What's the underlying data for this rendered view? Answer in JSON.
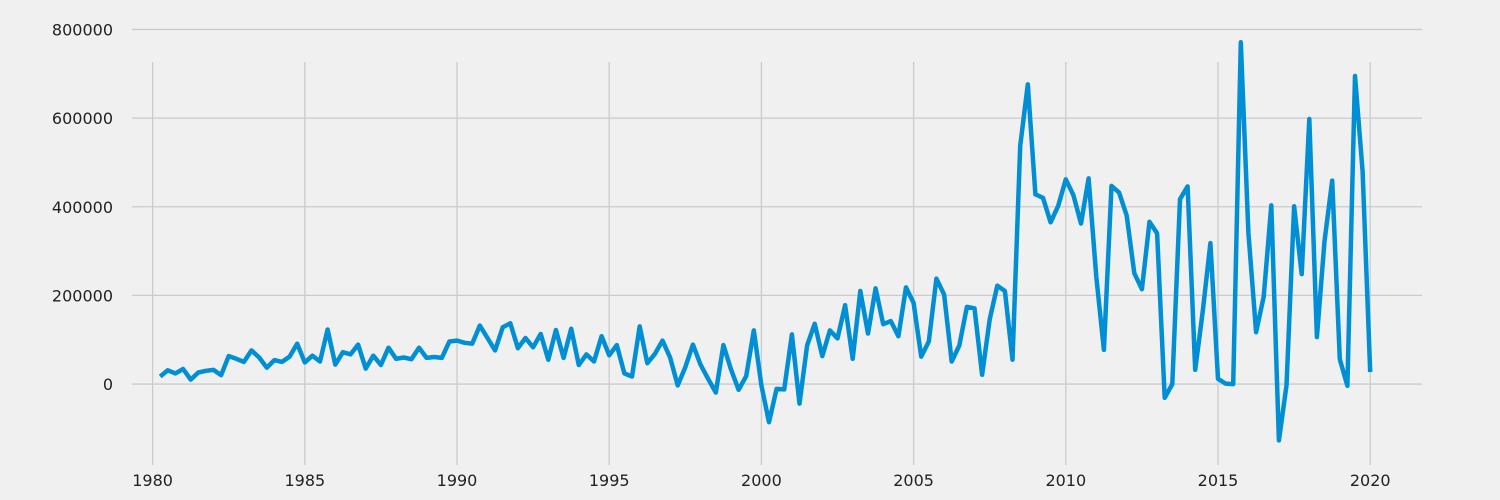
{
  "chart_data": {
    "type": "line",
    "title": "",
    "xlabel": "",
    "ylabel": "",
    "xlim": [
      1978.6,
      2021.8
    ],
    "ylim": [
      -160000,
      810000
    ],
    "grid": true,
    "x_ticks": [
      1980,
      1985,
      1990,
      1995,
      2000,
      2005,
      2010,
      2015,
      2020
    ],
    "y_ticks": [
      0,
      200000,
      400000,
      600000,
      800000
    ],
    "x_tick_labels": [
      "1980",
      "1985",
      "1990",
      "1995",
      "2000",
      "2005",
      "2010",
      "2015",
      "2020"
    ],
    "y_tick_labels": [
      "0",
      "200000",
      "400000",
      "600000",
      "800000"
    ],
    "series": [
      {
        "color": "#008fd5",
        "x": [
          1980.25,
          1980.5,
          1980.75,
          1981.0,
          1981.25,
          1981.5,
          1981.75,
          1982.0,
          1982.25,
          1982.5,
          1982.75,
          1983.0,
          1983.25,
          1983.5,
          1983.75,
          1984.0,
          1984.25,
          1984.5,
          1984.75,
          1985.0,
          1985.25,
          1985.5,
          1985.75,
          1986.0,
          1986.25,
          1986.5,
          1986.75,
          1987.0,
          1987.25,
          1987.5,
          1987.75,
          1988.0,
          1988.25,
          1988.5,
          1988.75,
          1989.0,
          1989.25,
          1989.5,
          1989.75,
          1990.0,
          1990.25,
          1990.5,
          1990.75,
          1991.0,
          1991.25,
          1991.5,
          1991.75,
          1992.0,
          1992.25,
          1992.5,
          1992.75,
          1993.0,
          1993.25,
          1993.5,
          1993.75,
          1994.0,
          1994.25,
          1994.5,
          1994.75,
          1995.0,
          1995.25,
          1995.5,
          1995.75,
          1996.0,
          1996.25,
          1996.5,
          1996.75,
          1997.0,
          1997.25,
          1997.5,
          1997.75,
          1998.0,
          1998.25,
          1998.5,
          1998.75,
          1999.0,
          1999.25,
          1999.5,
          1999.75,
          2000.0,
          2000.25,
          2000.5,
          2000.75,
          2001.0,
          2001.25,
          2001.5,
          2001.75,
          2002.0,
          2002.25,
          2002.5,
          2002.75,
          2003.0,
          2003.25,
          2003.5,
          2003.75,
          2004.0,
          2004.25,
          2004.5,
          2004.75,
          2005.0,
          2005.25,
          2005.5,
          2005.75,
          2006.0,
          2006.25,
          2006.5,
          2006.75,
          2007.0,
          2007.25,
          2007.5,
          2007.75,
          2008.0,
          2008.25,
          2008.5,
          2008.75,
          2009.0,
          2009.25,
          2009.5,
          2009.75,
          2010.0,
          2010.25,
          2010.5,
          2010.75,
          2011.0,
          2011.25,
          2011.5,
          2011.75,
          2012.0,
          2012.25,
          2012.5,
          2012.75,
          2013.0,
          2013.25,
          2013.5,
          2013.75,
          2014.0,
          2014.25,
          2014.5,
          2014.75,
          2015.0,
          2015.25,
          2015.5,
          2015.75,
          2016.0,
          2016.25,
          2016.5,
          2016.75,
          2017.0,
          2017.25,
          2017.5,
          2017.75,
          2018.0,
          2018.25,
          2018.5,
          2018.75,
          2019.0,
          2019.25,
          2019.5,
          2019.75,
          2020.0
        ],
        "y": [
          17000,
          31000,
          24000,
          34000,
          10000,
          26000,
          30000,
          32000,
          20000,
          63000,
          57000,
          50000,
          76000,
          60000,
          37000,
          54000,
          50000,
          62000,
          91000,
          49000,
          64000,
          51000,
          123000,
          44000,
          72000,
          67000,
          89000,
          35000,
          64000,
          43000,
          82000,
          57000,
          60000,
          56000,
          82000,
          59000,
          61000,
          59000,
          96000,
          98000,
          93000,
          91000,
          132000,
          104000,
          76000,
          128000,
          137000,
          81000,
          104000,
          83000,
          113000,
          55000,
          122000,
          59000,
          125000,
          43000,
          67000,
          51000,
          108000,
          65000,
          88000,
          24000,
          17000,
          130000,
          47000,
          68000,
          98000,
          60000,
          -3000,
          38000,
          89000,
          44000,
          12000,
          -19000,
          88000,
          33000,
          -13000,
          18000,
          121000,
          -3000,
          -86000,
          -11000,
          -12000,
          112000,
          -44000,
          87000,
          136000,
          63000,
          121000,
          103000,
          178000,
          57000,
          210000,
          114000,
          216000,
          135000,
          142000,
          108000,
          218000,
          183000,
          62000,
          96000,
          238000,
          202000,
          51000,
          87000,
          174000,
          171000,
          21000,
          146000,
          222000,
          210000,
          55000,
          537000,
          676000,
          428000,
          420000,
          365000,
          402000,
          462000,
          426000,
          362000,
          464000,
          242000,
          77000,
          447000,
          432000,
          380000,
          250000,
          214000,
          366000,
          340000,
          -31000,
          0,
          417000,
          446000,
          32000,
          165000,
          318000,
          12000,
          1000,
          0,
          771000,
          341000,
          117000,
          197000,
          403000,
          -127000,
          -3000,
          401000,
          248000,
          598000,
          106000,
          322000,
          459000,
          56000,
          -4000,
          695000,
          480000,
          27000
        ]
      }
    ]
  }
}
